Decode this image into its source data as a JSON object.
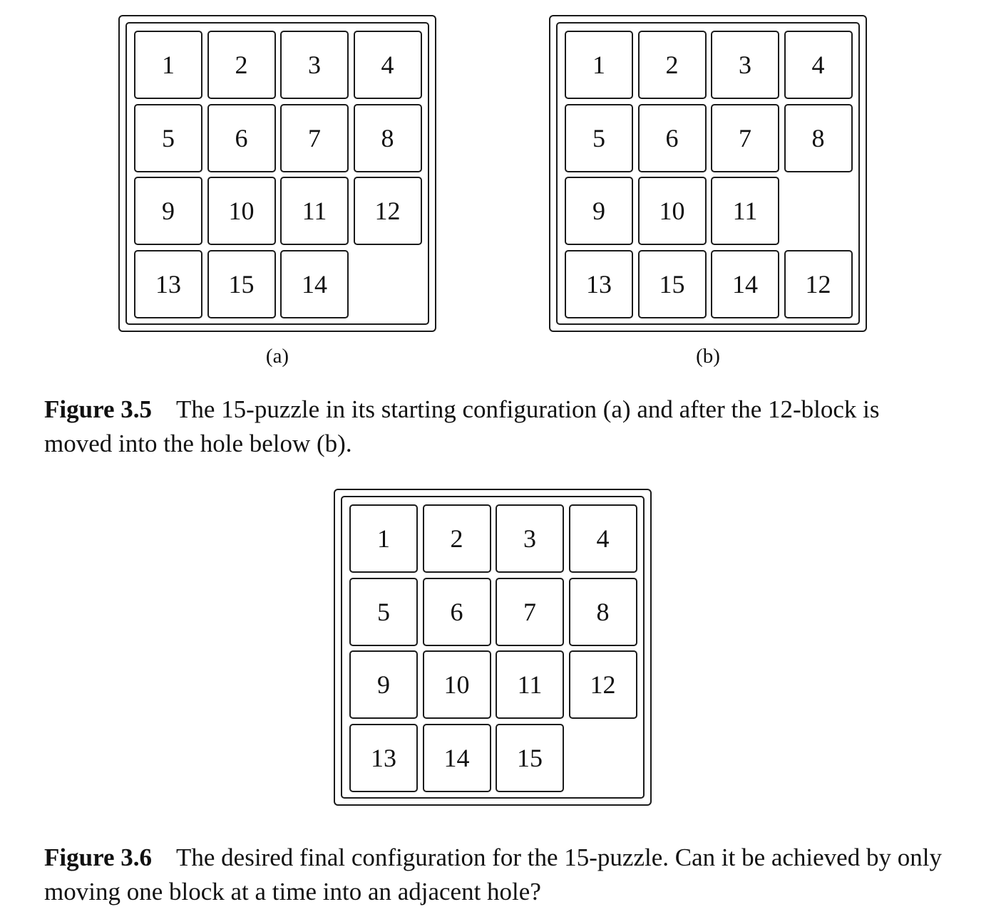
{
  "figure_3_5": {
    "puzzle_a": {
      "label": "(a)",
      "tiles": [
        "1",
        "2",
        "3",
        "4",
        "5",
        "6",
        "7",
        "8",
        "9",
        "10",
        "11",
        "12",
        "13",
        "15",
        "14",
        ""
      ]
    },
    "puzzle_b": {
      "label": "(b)",
      "tiles": [
        "1",
        "2",
        "3",
        "4",
        "5",
        "6",
        "7",
        "8",
        "9",
        "10",
        "11",
        "",
        "13",
        "15",
        "14",
        "12"
      ]
    },
    "caption_label": "Figure 3.5",
    "caption_text": "The 15-puzzle in its starting configuration (a) and after the 12-block is moved into the hole below (b)."
  },
  "figure_3_6": {
    "puzzle_c": {
      "tiles": [
        "1",
        "2",
        "3",
        "4",
        "5",
        "6",
        "7",
        "8",
        "9",
        "10",
        "11",
        "12",
        "13",
        "14",
        "15",
        ""
      ]
    },
    "caption_label": "Figure 3.6",
    "caption_text": "The desired final configuration for the 15-puzzle. Can it be achieved by only moving one block at a time into an adjacent hole?"
  }
}
